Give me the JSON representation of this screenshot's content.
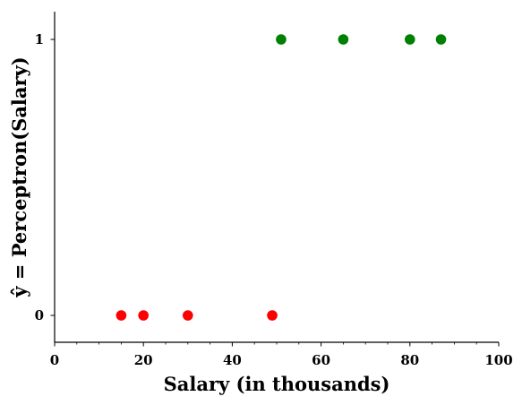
{
  "chart_data": {
    "type": "scatter",
    "xlabel": "Salary (in thousands)",
    "ylabel": "ŷ = Perceptron(Salary)",
    "xlim": [
      0,
      100
    ],
    "ylim": [
      -0.1,
      1.1
    ],
    "x_ticks": [
      0,
      20,
      40,
      60,
      80,
      100
    ],
    "x_tick_labels": [
      "0",
      "20",
      "40",
      "60",
      "80",
      "100"
    ],
    "y_ticks": [
      0,
      1
    ],
    "y_tick_labels": [
      "0",
      "1"
    ],
    "grid": false,
    "series": [
      {
        "color": "#ff0000",
        "points": [
          {
            "x": 15,
            "y": 0
          },
          {
            "x": 20,
            "y": 0
          },
          {
            "x": 30,
            "y": 0
          },
          {
            "x": 49,
            "y": 0
          }
        ]
      },
      {
        "color": "#008000",
        "points": [
          {
            "x": 51,
            "y": 1
          },
          {
            "x": 65,
            "y": 1
          },
          {
            "x": 80,
            "y": 1
          },
          {
            "x": 87,
            "y": 1
          }
        ]
      }
    ]
  }
}
